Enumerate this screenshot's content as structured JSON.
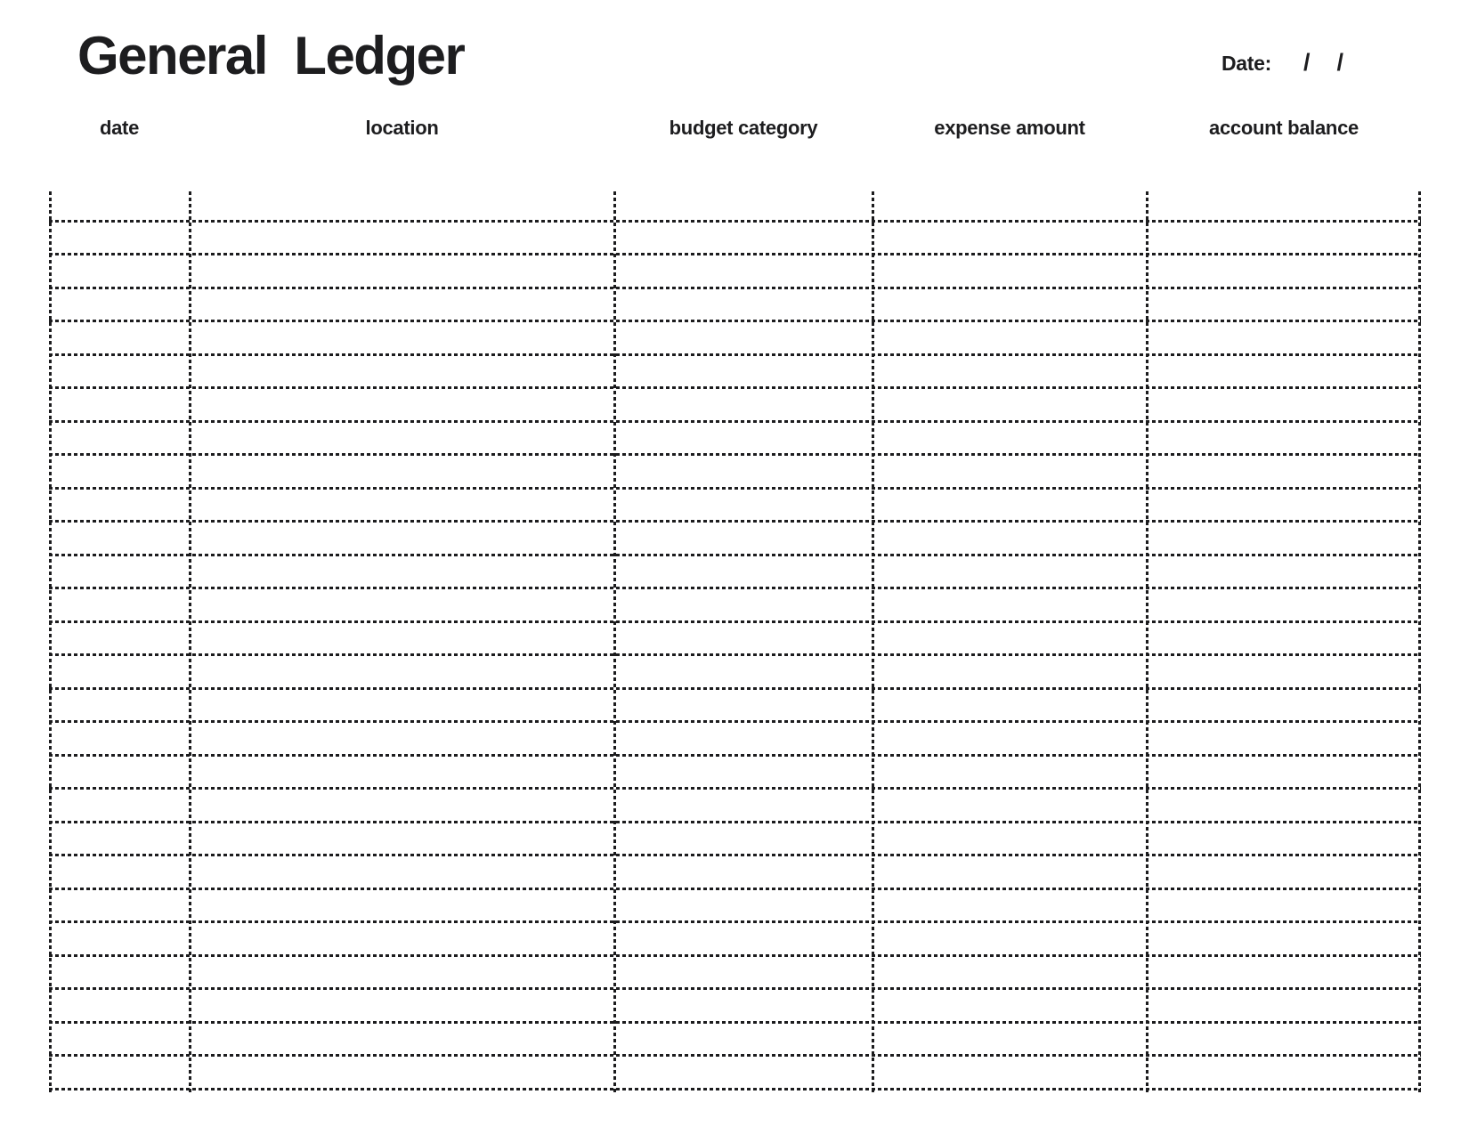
{
  "document": {
    "title": "General  Ledger",
    "date_field": {
      "label": "Date:",
      "separator1": "/",
      "separator2": "/"
    }
  },
  "table": {
    "columns": [
      {
        "key": "date",
        "label": "date"
      },
      {
        "key": "location",
        "label": "location"
      },
      {
        "key": "budget_category",
        "label": "budget category"
      },
      {
        "key": "expense_amount",
        "label": "expense amount"
      },
      {
        "key": "account_balance",
        "label": "account balance"
      }
    ],
    "row_count": 27,
    "cells": "empty"
  },
  "colors": {
    "ink": "#1c1c1e",
    "background": "#ffffff"
  }
}
